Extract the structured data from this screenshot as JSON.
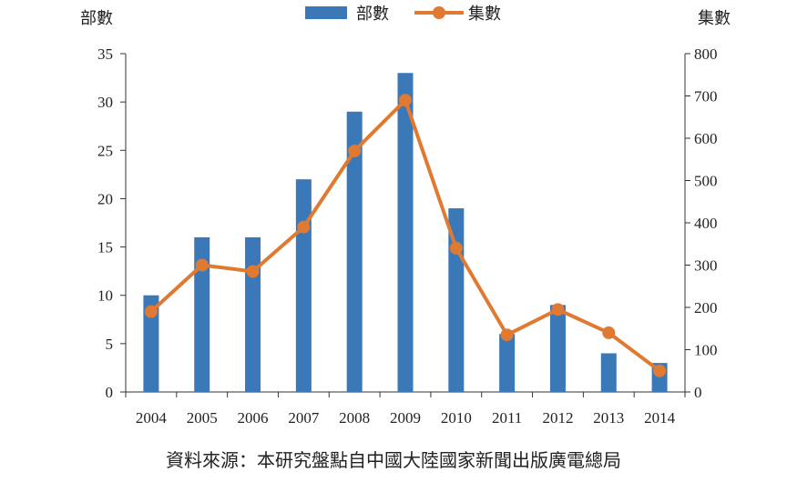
{
  "chart_data": {
    "type": "bar+line",
    "categories": [
      "2004",
      "2005",
      "2006",
      "2007",
      "2008",
      "2009",
      "2010",
      "2011",
      "2012",
      "2013",
      "2014"
    ],
    "series": [
      {
        "name": "部數",
        "type": "bar",
        "axis": "left",
        "values": [
          10,
          16,
          16,
          22,
          29,
          33,
          19,
          6,
          9,
          4,
          3
        ],
        "color": "#3a78b8"
      },
      {
        "name": "集數",
        "type": "line",
        "axis": "right",
        "values": [
          190,
          300,
          285,
          390,
          570,
          690,
          340,
          135,
          195,
          140,
          50
        ],
        "color": "#e07a32"
      }
    ],
    "ylabel_left": "部數",
    "ylabel_right": "集數",
    "ylim_left": [
      0,
      35
    ],
    "yticks_left": [
      0,
      5,
      10,
      15,
      20,
      25,
      30,
      35
    ],
    "ylim_right": [
      0,
      800
    ],
    "yticks_right": [
      0,
      100,
      200,
      300,
      400,
      500,
      600,
      700,
      800
    ],
    "legend_position": "top-center",
    "grid": false
  },
  "caption": "資料來源：本研究盤點自中國大陸國家新聞出版廣電總局"
}
